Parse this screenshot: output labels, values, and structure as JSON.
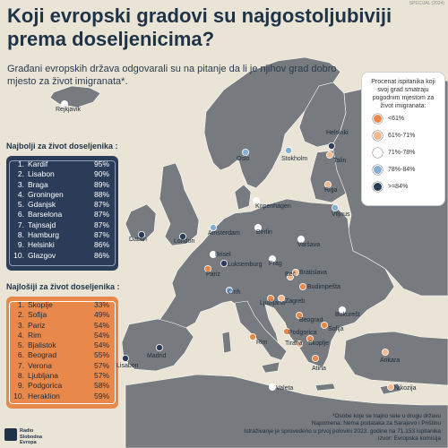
{
  "title": "Koji evropski gradovi su najgostoljubiviji prema doseljenicima?",
  "watermark": "SPECIJAL (2024)",
  "subtitle": "Građani evropskih država odgovarali su na pitanje da li je njihov grad dobro mjesto za život imigranata*.",
  "legend": {
    "title": "Procenat ispitanika koji svoj grad smatraju pogodnim mjestom za život imigranata:",
    "items": [
      {
        "label": "<61%",
        "color": "#e8894b"
      },
      {
        "label": "61%-71%",
        "color": "#f0b990"
      },
      {
        "label": "71%-78%",
        "color": "#ffffff"
      },
      {
        "label": "78%-84%",
        "color": "#86aed3"
      },
      {
        "label": ">=84%",
        "color": "#2b3c58"
      }
    ]
  },
  "best": {
    "title": "Najbolji za život doseljenika :",
    "rows": [
      {
        "rank": "1.",
        "city": "Kardif",
        "pct": "95%"
      },
      {
        "rank": "2.",
        "city": "Lisabon",
        "pct": "90%"
      },
      {
        "rank": "3.",
        "city": "Braga",
        "pct": "89%"
      },
      {
        "rank": "4.",
        "city": "Groningen",
        "pct": "88%"
      },
      {
        "rank": "5.",
        "city": "Gdanjsk",
        "pct": "87%"
      },
      {
        "rank": "6.",
        "city": "Barselona",
        "pct": "87%"
      },
      {
        "rank": "7.",
        "city": "Tajnsajd",
        "pct": "87%"
      },
      {
        "rank": "8.",
        "city": "Hamburg",
        "pct": "87%"
      },
      {
        "rank": "9.",
        "city": "Helsinki",
        "pct": "86%"
      },
      {
        "rank": "10.",
        "city": "Glazgov",
        "pct": "86%"
      }
    ]
  },
  "worst": {
    "title": "Najlošiji za život doseljenika :",
    "rows": [
      {
        "rank": "1.",
        "city": "Skoplje",
        "pct": "33%"
      },
      {
        "rank": "2.",
        "city": "Sofija",
        "pct": "49%"
      },
      {
        "rank": "3.",
        "city": "Pariz",
        "pct": "54%"
      },
      {
        "rank": "4.",
        "city": "Rim",
        "pct": "54%"
      },
      {
        "rank": "5.",
        "city": "Bjalistok",
        "pct": "54%"
      },
      {
        "rank": "6.",
        "city": "Beograd",
        "pct": "55%"
      },
      {
        "rank": "7.",
        "city": "Verona",
        "pct": "57%"
      },
      {
        "rank": "8.",
        "city": "Ljubljana",
        "pct": "57%"
      },
      {
        "rank": "9.",
        "city": "Podgorica",
        "pct": "58%"
      },
      {
        "rank": "10.",
        "city": "Heraklion",
        "pct": "59%"
      }
    ]
  },
  "cities": [
    {
      "name": "Rejkjavik",
      "category": "71%-78%"
    },
    {
      "name": "Oslo",
      "category": "78%-84%"
    },
    {
      "name": "Stokholm",
      "category": "78%-84%"
    },
    {
      "name": "Helsinki",
      "category": ">=84%"
    },
    {
      "name": "Talin",
      "category": "61%-71%"
    },
    {
      "name": "Riga",
      "category": "61%-71%"
    },
    {
      "name": "Kopenhagen",
      "category": "71%-78%"
    },
    {
      "name": "Viljnus",
      "category": "78%-84%"
    },
    {
      "name": "Dablin",
      "category": ">=84%"
    },
    {
      "name": "London",
      "category": ">=84%"
    },
    {
      "name": "Amsterdam",
      "category": "78%-84%"
    },
    {
      "name": "Berlin",
      "category": "71%-78%"
    },
    {
      "name": "Varšava",
      "category": "71%-78%"
    },
    {
      "name": "Brisel",
      "category": "71%-78%"
    },
    {
      "name": "Luksemburg",
      "category": ">=84%"
    },
    {
      "name": "Pariz",
      "category": "<61%"
    },
    {
      "name": "Prag",
      "category": "71%-78%"
    },
    {
      "name": "Beč",
      "category": "61%-71%"
    },
    {
      "name": "Bratislava",
      "category": "61%-71%"
    },
    {
      "name": "Budimpešta",
      "category": "<61%"
    },
    {
      "name": "Cirih",
      "category": "78%-84%"
    },
    {
      "name": "Ljubljana",
      "category": "<61%"
    },
    {
      "name": "Zagreb",
      "category": "61%-71%"
    },
    {
      "name": "Bukurešt",
      "category": "71%-78%"
    },
    {
      "name": "Beograd",
      "category": "<61%"
    },
    {
      "name": "Sofija",
      "category": "<61%"
    },
    {
      "name": "Podgorica",
      "category": "<61%"
    },
    {
      "name": "Tirana",
      "category": "61%-71%"
    },
    {
      "name": "Skoplje",
      "category": "<61%"
    },
    {
      "name": "Rim",
      "category": "<61%"
    },
    {
      "name": "Madrid",
      "category": ">=84%"
    },
    {
      "name": "Lisabon",
      "category": ">=84%"
    },
    {
      "name": "Atina",
      "category": "<61%"
    },
    {
      "name": "Ankara",
      "category": "61%-71%"
    },
    {
      "name": "Valeta",
      "category": "71%-78%"
    },
    {
      "name": "Nikozija",
      "category": "61%-71%"
    }
  ],
  "footer": [
    "*Osobe koje se trajno sele u drugu državu",
    "Napomena: Nema podataka za Sarajevo i Prištinu",
    "Istraživanje je sprovedeno u prvoj polovini 2023. godine na 71.153 ispitanika",
    "Izvor: Evropska komisija"
  ],
  "logo_text": "Radio Slobodna Evropa"
}
